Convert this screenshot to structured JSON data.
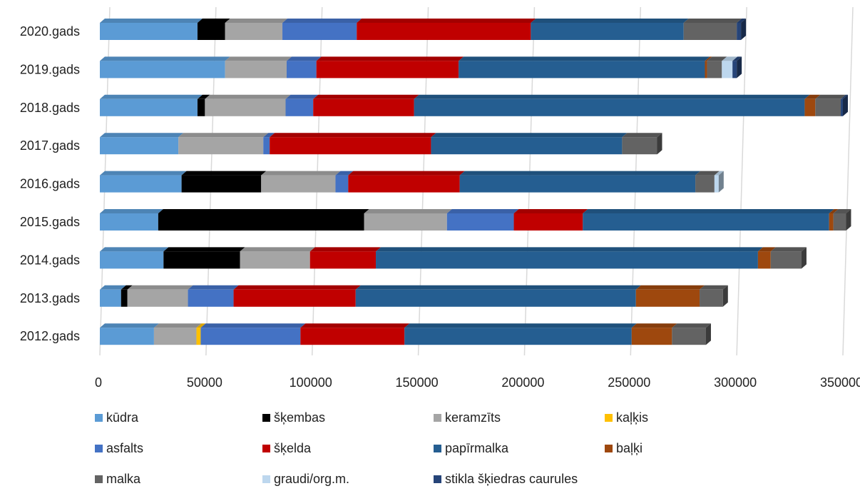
{
  "chart_data": {
    "type": "bar",
    "orientation": "horizontal",
    "stacked": true,
    "title": "",
    "xlabel": "",
    "ylabel": "",
    "xlim": [
      0,
      350000
    ],
    "x_ticks": [
      "0",
      "50000",
      "100000",
      "150000",
      "200000",
      "250000",
      "300000",
      "350000"
    ],
    "grid": true,
    "legend_position": "bottom",
    "categories": [
      "2020.gads",
      "2019.gads",
      "2018.gads",
      "2017.gads",
      "2016.gads",
      "2015.gads",
      "2014.gads",
      "2013.gads",
      "2012.gads"
    ],
    "series": [
      {
        "name": "kūdra",
        "color": "#5B9BD5",
        "values": [
          46000,
          59000,
          46000,
          37000,
          38500,
          27500,
          30000,
          10000,
          25500
        ]
      },
      {
        "name": "šķembas",
        "color": "#000000",
        "values": [
          13000,
          0,
          3500,
          0,
          37500,
          97000,
          36000,
          3000,
          0
        ]
      },
      {
        "name": "keramzīts",
        "color": "#A5A5A5",
        "values": [
          27000,
          29000,
          38000,
          40000,
          35000,
          39000,
          33000,
          28500,
          20000
        ]
      },
      {
        "name": "kaļķis",
        "color": "#FFC000",
        "values": [
          0,
          0,
          0,
          0,
          0,
          0,
          0,
          0,
          2000
        ]
      },
      {
        "name": "asfalts",
        "color": "#4472C4",
        "values": [
          35000,
          14000,
          13000,
          3000,
          6000,
          31500,
          0,
          21500,
          47000
        ]
      },
      {
        "name": "šķelda",
        "color": "#C00000",
        "values": [
          82000,
          67000,
          47500,
          76000,
          52500,
          32500,
          31000,
          57500,
          49000
        ]
      },
      {
        "name": "papīrmalka",
        "color": "#255E91",
        "values": [
          72000,
          116000,
          184000,
          90000,
          111000,
          116000,
          180000,
          132000,
          107000
        ]
      },
      {
        "name": "baļķi",
        "color": "#9E480E",
        "values": [
          0,
          1000,
          5000,
          0,
          0,
          2000,
          6000,
          30000,
          19000
        ]
      },
      {
        "name": "malka",
        "color": "#636363",
        "values": [
          25000,
          7000,
          12000,
          16500,
          9000,
          6000,
          14500,
          11000,
          16000
        ]
      },
      {
        "name": "graudi/org.m.",
        "color": "#BDD7EE",
        "values": [
          0,
          5000,
          0,
          0,
          2000,
          0,
          0,
          0,
          0
        ]
      },
      {
        "name": "stikla šķiedras caurules",
        "color": "#264478",
        "values": [
          2000,
          2000,
          1000,
          0,
          0,
          0,
          0,
          0,
          0
        ]
      }
    ]
  }
}
